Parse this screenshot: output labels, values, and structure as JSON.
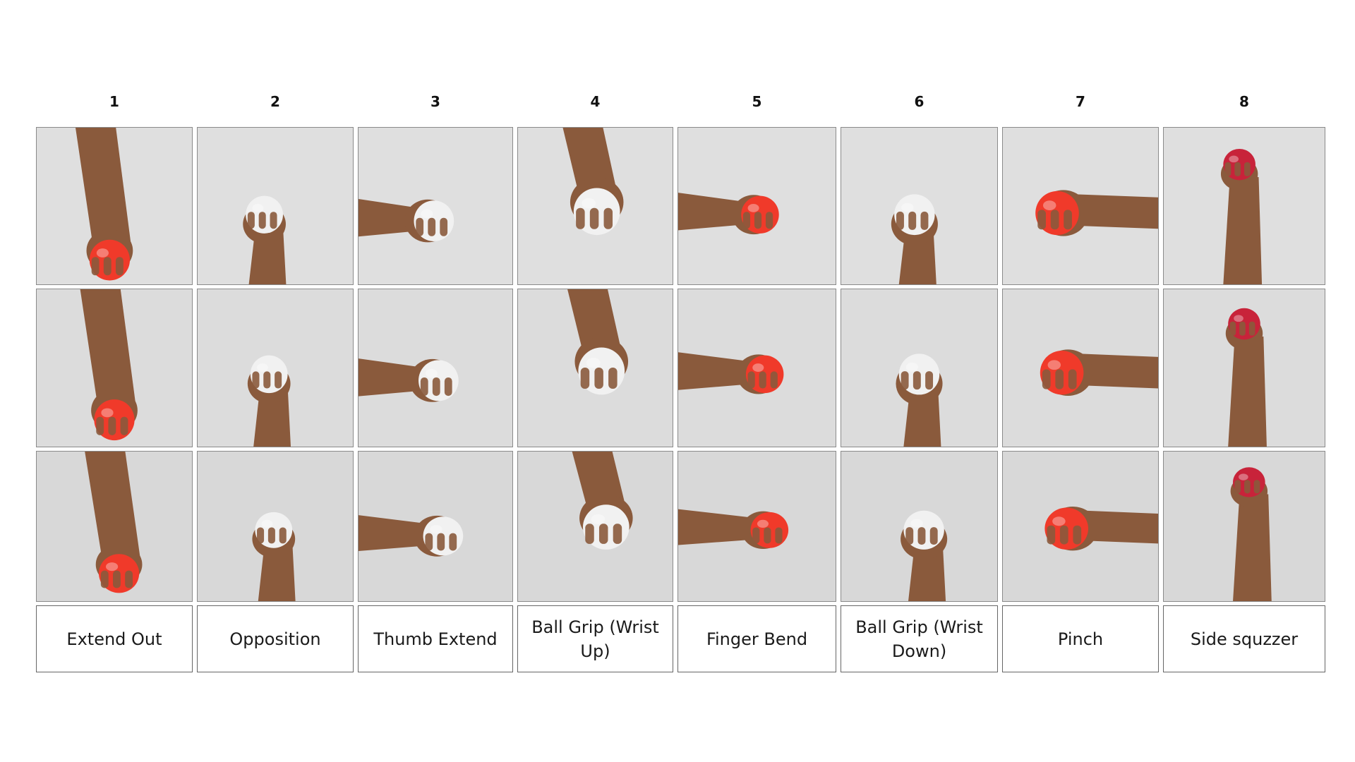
{
  "colors": {
    "background": "#ffffff",
    "photo_backdrop": "#e9e9e9",
    "skin": "#8a5a3c",
    "red_ball": "#f03a2a",
    "white_ball": "#f1f1f1",
    "strawberry_ball": "#c8233a",
    "tile_border": "#8a8a8a"
  },
  "exercises": [
    {
      "number": "1",
      "label": "Extend Out",
      "ball": "red_ball",
      "icon": "hand-ball-photo"
    },
    {
      "number": "2",
      "label": "Opposition",
      "ball": "white_ball",
      "icon": "hand-ball-photo"
    },
    {
      "number": "3",
      "label": "Thumb Extend",
      "ball": "white_ball",
      "icon": "hand-ball-photo"
    },
    {
      "number": "4",
      "label": "Ball Grip (Wrist Up)",
      "ball": "white_ball",
      "icon": "hand-ball-photo"
    },
    {
      "number": "5",
      "label": "Finger Bend",
      "ball": "red_ball",
      "icon": "hand-ball-photo"
    },
    {
      "number": "6",
      "label": "Ball Grip (Wrist Down)",
      "ball": "white_ball",
      "icon": "hand-ball-photo"
    },
    {
      "number": "7",
      "label": "Pinch",
      "ball": "red_ball",
      "icon": "hand-ball-photo"
    },
    {
      "number": "8",
      "label": "Side squzzer",
      "ball": "strawberry_ball",
      "icon": "hand-ball-photo"
    }
  ]
}
